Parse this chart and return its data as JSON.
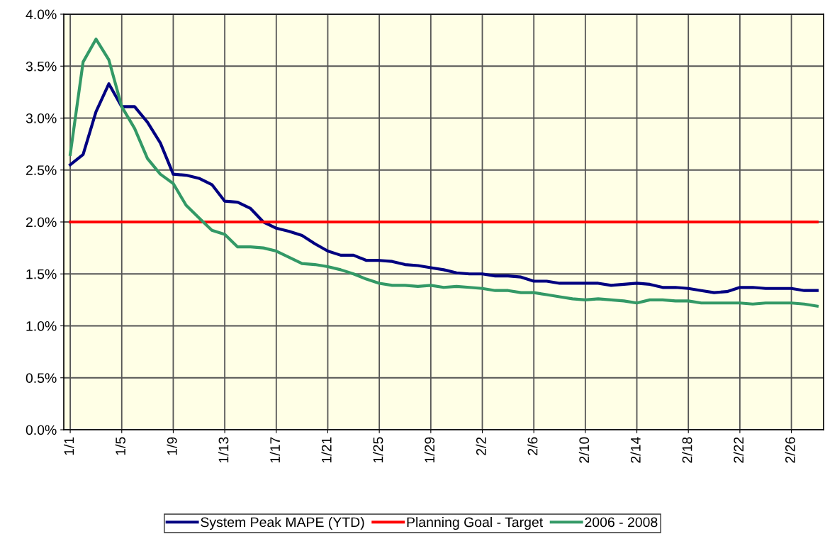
{
  "chart_data": {
    "type": "line",
    "categories": [
      "1/1",
      null,
      null,
      null,
      "1/5",
      null,
      null,
      null,
      "1/9",
      null,
      null,
      null,
      "1/13",
      null,
      null,
      null,
      "1/17",
      null,
      null,
      null,
      "1/21",
      null,
      null,
      null,
      "1/25",
      null,
      null,
      null,
      "1/29",
      null,
      null,
      null,
      "2/2",
      null,
      null,
      null,
      "2/6",
      null,
      null,
      null,
      "2/10",
      null,
      null,
      null,
      "2/14",
      null,
      null,
      null,
      "2/18",
      null,
      null,
      null,
      "2/22",
      null,
      null,
      null,
      "2/26",
      null,
      null
    ],
    "series": [
      {
        "name": "System Peak MAPE (YTD)",
        "color": "#000080",
        "values": [
          2.55,
          2.65,
          3.06,
          3.33,
          3.11,
          3.11,
          2.96,
          2.76,
          2.46,
          2.45,
          2.42,
          2.36,
          2.2,
          2.19,
          2.13,
          2.0,
          1.94,
          1.91,
          1.87,
          1.79,
          1.72,
          1.68,
          1.68,
          1.63,
          1.63,
          1.62,
          1.59,
          1.58,
          1.56,
          1.54,
          1.51,
          1.5,
          1.5,
          1.48,
          1.48,
          1.47,
          1.43,
          1.43,
          1.41,
          1.41,
          1.41,
          1.41,
          1.39,
          1.4,
          1.41,
          1.4,
          1.37,
          1.37,
          1.36,
          1.34,
          1.32,
          1.33,
          1.37,
          1.37,
          1.36,
          1.36,
          1.36,
          1.34,
          1.34
        ]
      },
      {
        "name": "Planning Goal - Target",
        "color": "#ff0000",
        "values": [
          2,
          2,
          2,
          2,
          2,
          2,
          2,
          2,
          2,
          2,
          2,
          2,
          2,
          2,
          2,
          2,
          2,
          2,
          2,
          2,
          2,
          2,
          2,
          2,
          2,
          2,
          2,
          2,
          2,
          2,
          2,
          2,
          2,
          2,
          2,
          2,
          2,
          2,
          2,
          2,
          2,
          2,
          2,
          2,
          2,
          2,
          2,
          2,
          2,
          2,
          2,
          2,
          2,
          2,
          2,
          2,
          2,
          2,
          2
        ]
      },
      {
        "name": "2006 - 2008",
        "color": "#339966",
        "values": [
          2.65,
          3.54,
          3.76,
          3.56,
          3.11,
          2.9,
          2.61,
          2.46,
          2.37,
          2.16,
          2.04,
          1.92,
          1.88,
          1.76,
          1.76,
          1.75,
          1.72,
          1.66,
          1.6,
          1.59,
          1.57,
          1.54,
          1.5,
          1.45,
          1.41,
          1.39,
          1.39,
          1.38,
          1.39,
          1.37,
          1.38,
          1.37,
          1.36,
          1.34,
          1.34,
          1.32,
          1.32,
          1.3,
          1.28,
          1.26,
          1.25,
          1.26,
          1.25,
          1.24,
          1.22,
          1.25,
          1.25,
          1.24,
          1.24,
          1.22,
          1.22,
          1.22,
          1.22,
          1.21,
          1.22,
          1.22,
          1.22,
          1.21,
          1.19
        ]
      }
    ],
    "ylim": [
      0,
      4
    ],
    "yticks": [
      {
        "value": 0,
        "label": "0.0%"
      },
      {
        "value": 0.5,
        "label": "0.5%"
      },
      {
        "value": 1,
        "label": "1.0%"
      },
      {
        "value": 1.5,
        "label": "1.5%"
      },
      {
        "value": 2,
        "label": "2.0%"
      },
      {
        "value": 2.5,
        "label": "2.5%"
      },
      {
        "value": 3,
        "label": "3.0%"
      },
      {
        "value": 3.5,
        "label": "3.5%"
      },
      {
        "value": 4,
        "label": "4.0%"
      }
    ],
    "grid": true,
    "legend": "bottom",
    "marker": "none",
    "line_style": "solid"
  }
}
